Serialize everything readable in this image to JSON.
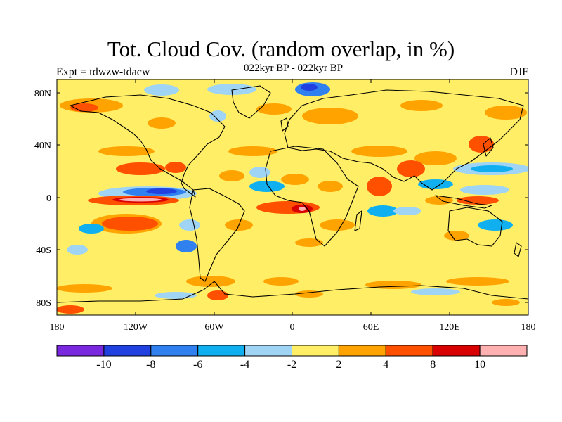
{
  "header": {
    "title": "Tot. Cloud Cov. (random overlap, in %)",
    "subtitle": "022kyr BP - 022kyr BP",
    "left_label": "Expt = tdwzw-tdacw",
    "right_label": "DJF"
  },
  "map": {
    "lat_ticks": [
      "80N",
      "40N",
      "0",
      "40S",
      "80S"
    ],
    "lon_ticks": [
      "180",
      "120W",
      "60W",
      "0",
      "60E",
      "120E",
      "180"
    ],
    "background_color": "#ffee66"
  },
  "colorbar": {
    "colors": [
      "#7a28e0",
      "#2040e0",
      "#3080f0",
      "#10b0f0",
      "#a0d4f4",
      "#ffee66",
      "#ffa300",
      "#ff5000",
      "#d80000",
      "#ffb0b0"
    ],
    "labels": [
      "-10",
      "-8",
      "-6",
      "-4",
      "-2",
      "2",
      "4",
      "8",
      "10"
    ]
  }
}
